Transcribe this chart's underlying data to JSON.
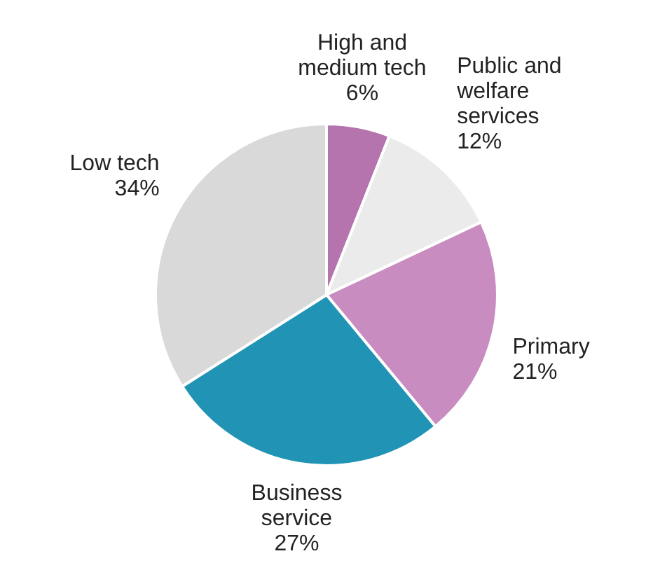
{
  "chart_data": {
    "type": "pie",
    "categories": [
      "High and medium tech",
      "Public and welfare services",
      "Primary",
      "Business service",
      "Low tech"
    ],
    "values": [
      6,
      12,
      21,
      27,
      34
    ],
    "value_labels": [
      "6%",
      "12%",
      "21%",
      "27%",
      "34%"
    ],
    "colors": [
      "#b574ad",
      "#ebebeb",
      "#c98cc0",
      "#2194b5",
      "#d9d9d9"
    ],
    "legend": false
  }
}
